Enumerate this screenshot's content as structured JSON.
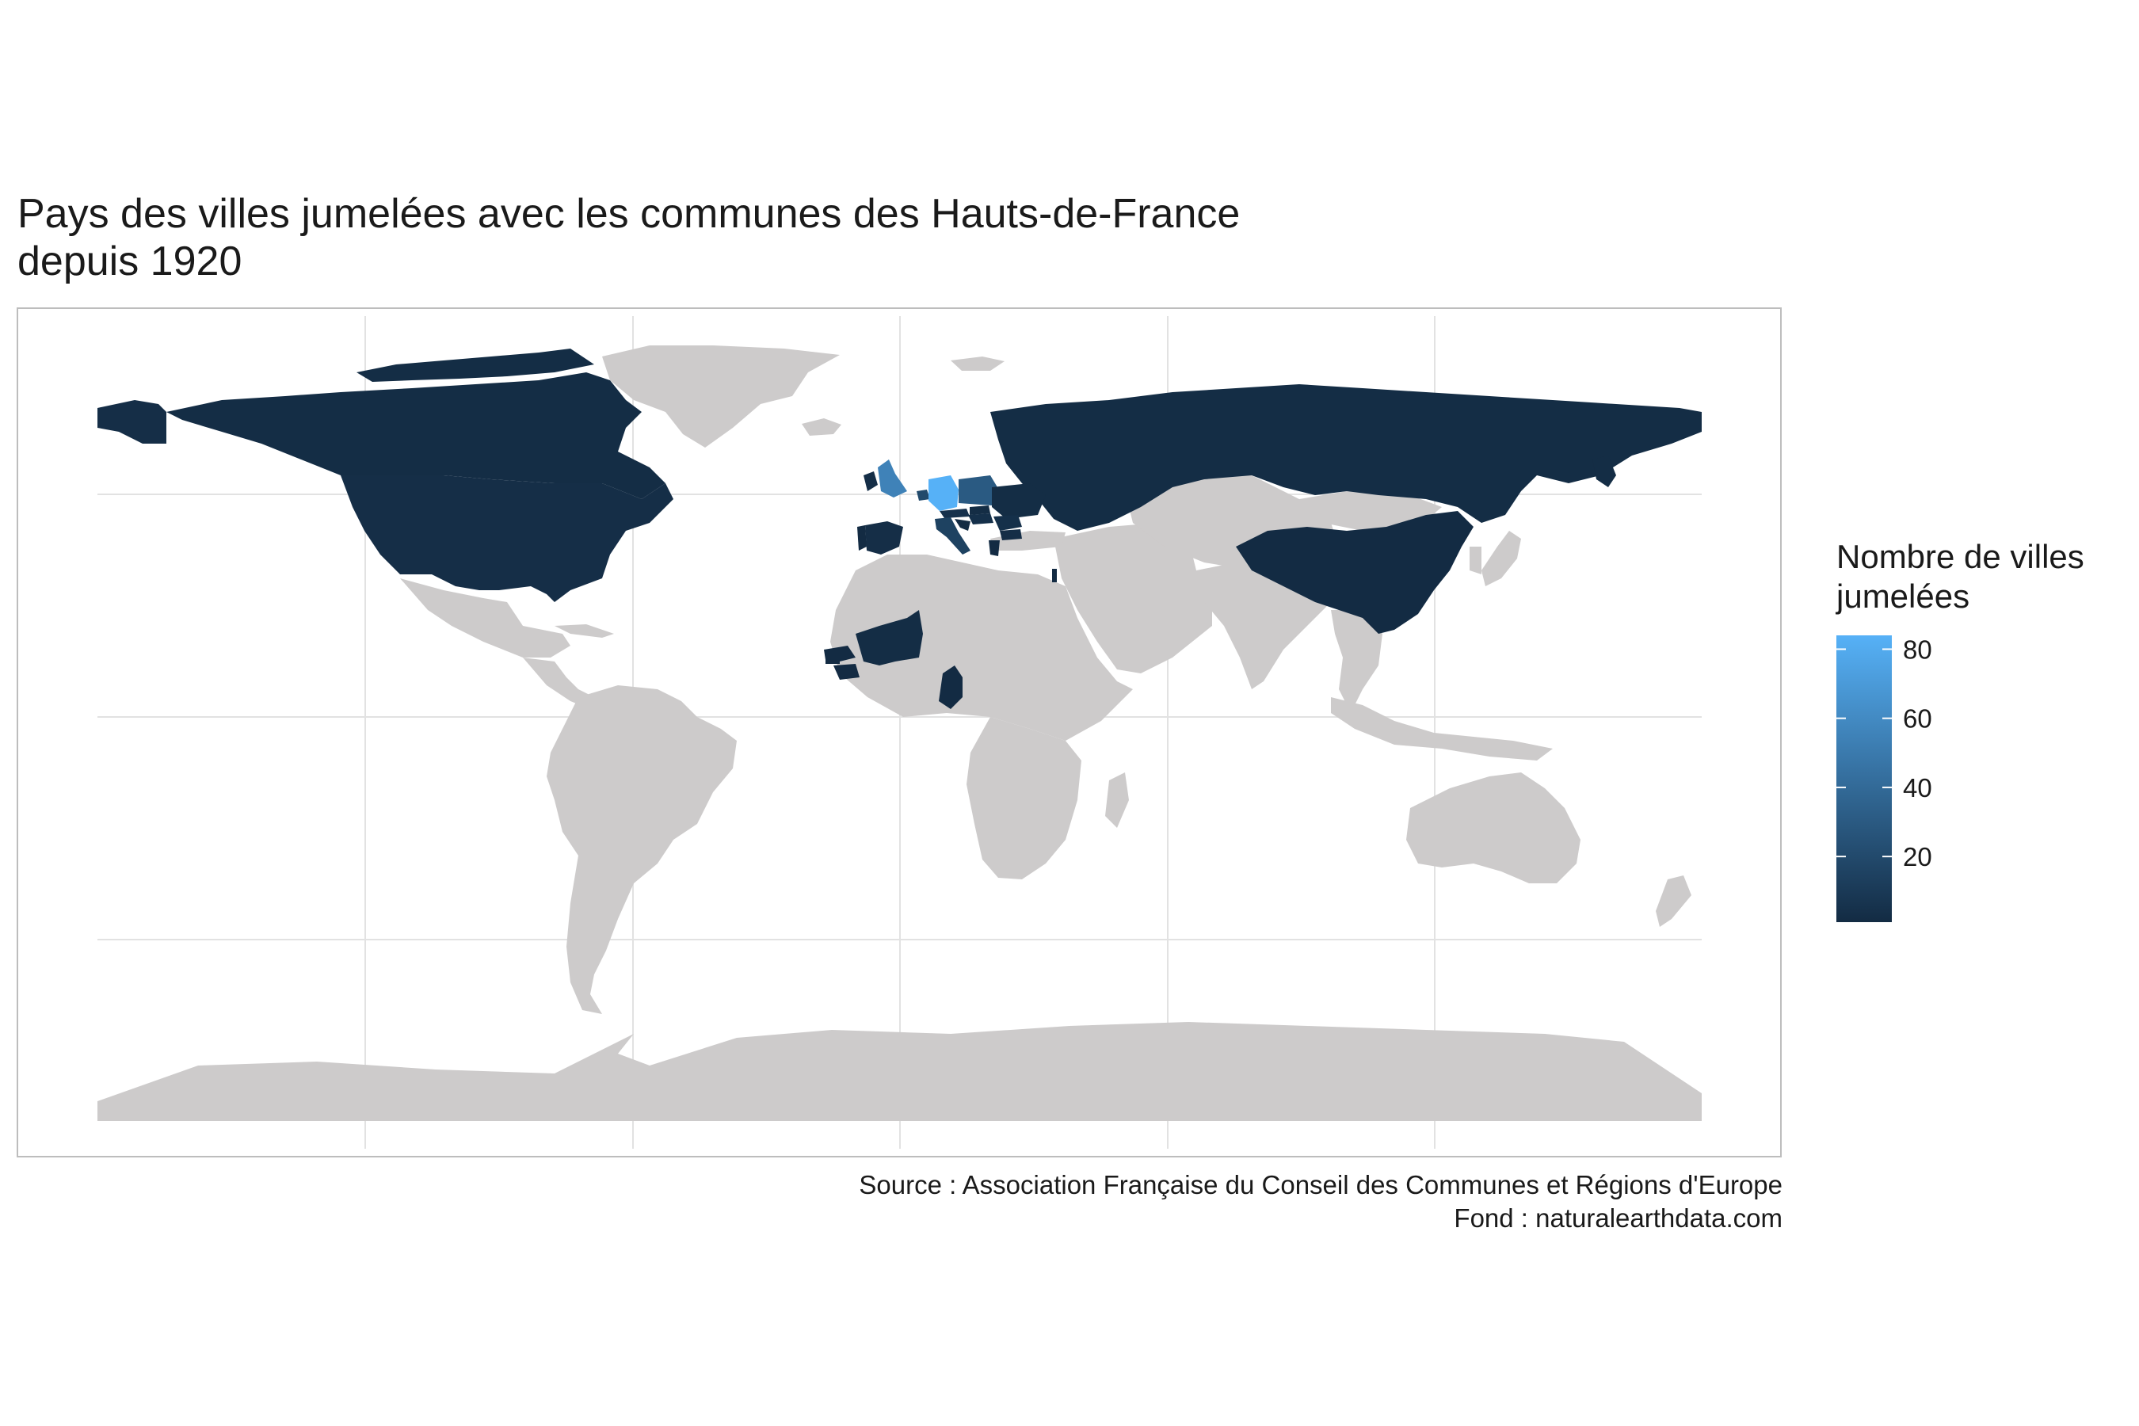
{
  "title": {
    "line1": "Pays des villes jumelées avec les communes des Hauts-de-France",
    "line2": "depuis 1920"
  },
  "legend": {
    "title_line1": "Nombre de villes",
    "title_line2": "jumelées",
    "ticks": [
      20,
      40,
      60,
      80
    ],
    "min": 1,
    "max": 84,
    "low_color": "#132B43",
    "high_color": "#56B1F7"
  },
  "caption": {
    "line1": "Source : Association Française du Conseil des Communes et Régions d'Europe",
    "line2": "Fond : naturalearthdata.com"
  },
  "map_data": {
    "projection": "plate-carree",
    "land_color": "#cdcbcb",
    "panel_border_color": "#bdbdbd",
    "grid_color": "#e2e2e2",
    "countries": [
      {
        "name": "Allemagne",
        "value": 84
      },
      {
        "name": "Royaume-Uni",
        "value": 55
      },
      {
        "name": "Pologne",
        "value": 30
      },
      {
        "name": "Belgique",
        "value": 20
      },
      {
        "name": "Italie",
        "value": 15
      },
      {
        "name": "Autriche",
        "value": 5
      },
      {
        "name": "Hongrie",
        "value": 4
      },
      {
        "name": "Roumanie",
        "value": 4
      },
      {
        "name": "Bulgarie",
        "value": 3
      },
      {
        "name": "Espagne",
        "value": 3
      },
      {
        "name": "Irlande",
        "value": 3
      },
      {
        "name": "Slovaquie",
        "value": 2
      },
      {
        "name": "Ukraine",
        "value": 2
      },
      {
        "name": "Croatie",
        "value": 1
      },
      {
        "name": "Grèce",
        "value": 1
      },
      {
        "name": "Portugal",
        "value": 1
      },
      {
        "name": "Russie",
        "value": 2
      },
      {
        "name": "États-Unis",
        "value": 3
      },
      {
        "name": "Canada",
        "value": 2
      },
      {
        "name": "Chine",
        "value": 1
      },
      {
        "name": "Mali",
        "value": 2
      },
      {
        "name": "Sénégal",
        "value": 1
      },
      {
        "name": "Cameroun",
        "value": 1
      },
      {
        "name": "Guinée",
        "value": 1
      },
      {
        "name": "Gambie",
        "value": 1
      },
      {
        "name": "Israël",
        "value": 1
      }
    ]
  }
}
